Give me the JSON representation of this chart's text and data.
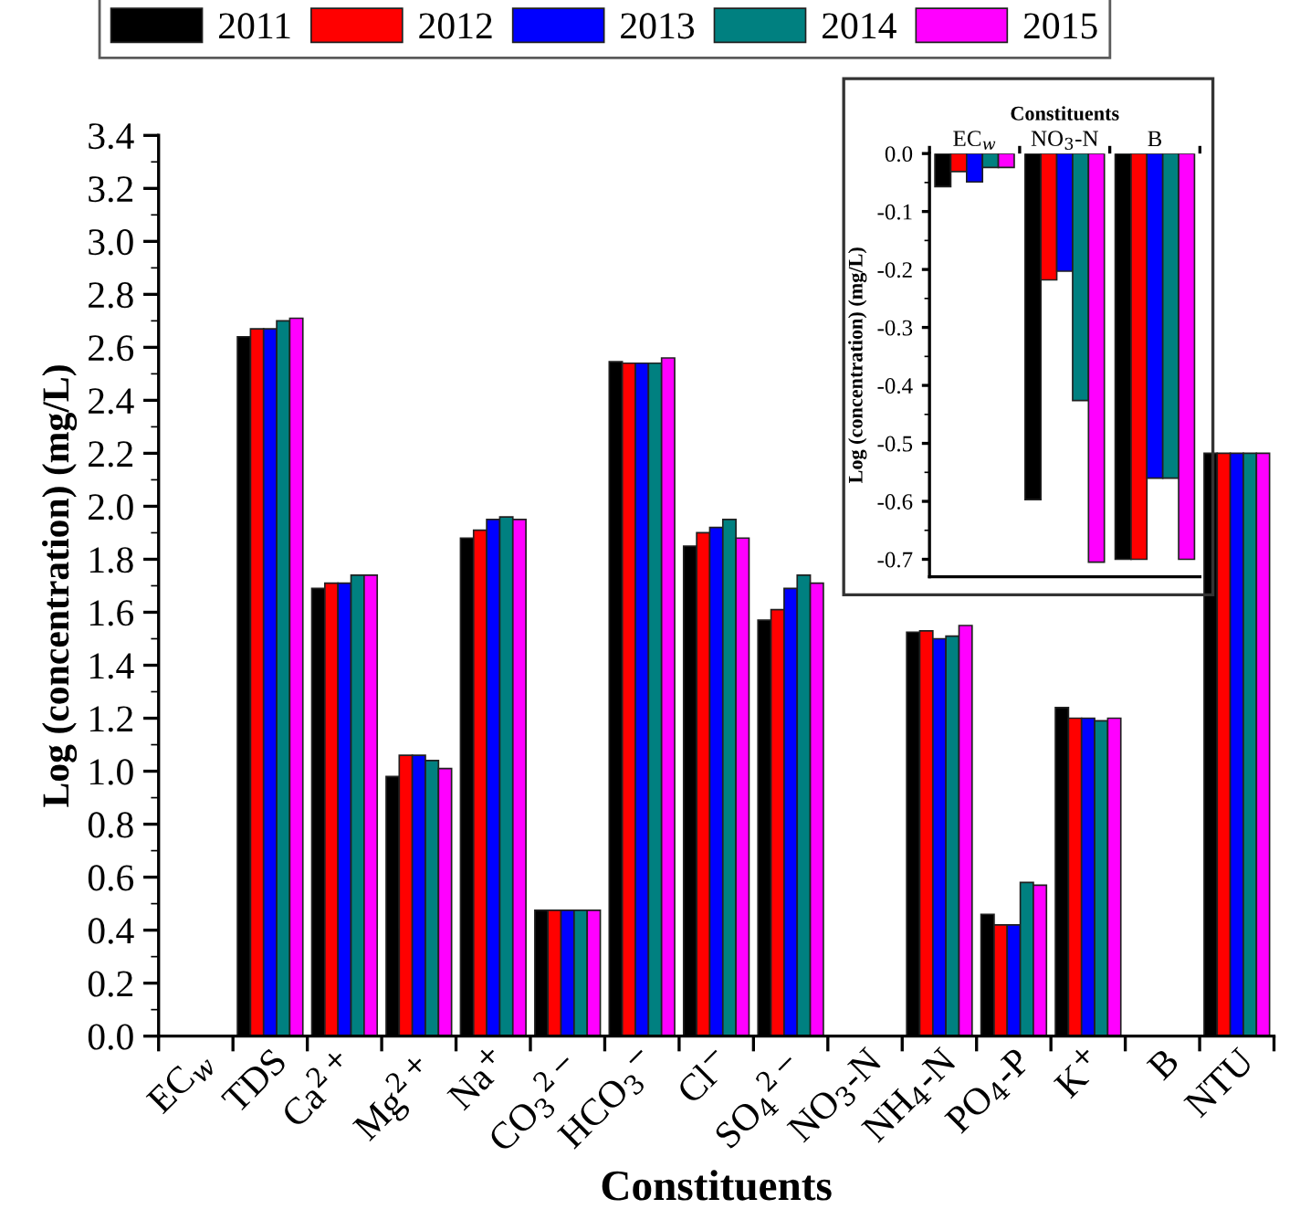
{
  "chart_data": [
    {
      "type": "bar",
      "categories": [
        "EC$_{w}$",
        "TDS",
        "Ca$^{2+}$",
        "Mg$^{2+}$",
        "Na$^{+}$",
        "CO$_{3}$$^{2−}$",
        "HCO$_{3}$$^{−}$",
        "Cl$^{−}$",
        "SO$_{4}$$^{2−}$",
        "NO$_{3}$-N",
        "NH$_{4}$-N",
        "PO$_{4}$-P",
        "K$^{+}$",
        "B",
        "NTU"
      ],
      "series": [
        {
          "name": "2011",
          "color": "#000000",
          "values": [
            null,
            2.64,
            1.69,
            0.98,
            1.88,
            0.475,
            2.546,
            1.85,
            1.57,
            null,
            1.525,
            0.46,
            1.24,
            null,
            2.2
          ]
        },
        {
          "name": "2012",
          "color": "#ff0000",
          "values": [
            null,
            2.67,
            1.71,
            1.06,
            1.91,
            0.475,
            2.54,
            1.9,
            1.61,
            null,
            1.53,
            0.42,
            1.2,
            null,
            2.2
          ]
        },
        {
          "name": "2013",
          "color": "#0000ff",
          "values": [
            null,
            2.67,
            1.71,
            1.06,
            1.95,
            0.475,
            2.54,
            1.92,
            1.69,
            null,
            1.5,
            0.42,
            1.2,
            null,
            2.2
          ]
        },
        {
          "name": "2014",
          "color": "#008080",
          "values": [
            null,
            2.7,
            1.74,
            1.04,
            1.96,
            0.475,
            2.54,
            1.95,
            1.74,
            null,
            1.51,
            0.58,
            1.19,
            null,
            2.2
          ]
        },
        {
          "name": "2015",
          "color": "#ff00ff",
          "values": [
            null,
            2.71,
            1.74,
            1.01,
            1.95,
            0.475,
            2.56,
            1.88,
            1.71,
            null,
            1.55,
            0.57,
            1.2,
            null,
            2.2
          ]
        }
      ],
      "xlabel": "Constituents",
      "ylabel": "Log (concentration) (mg/L)",
      "ylim": [
        0,
        3.4
      ],
      "yticks": [
        {
          "value": 0,
          "label": "0.0"
        },
        0.2,
        0.4,
        0.6,
        0.8,
        {
          "value": 1,
          "label": "1.0"
        },
        1.2,
        1.4,
        1.6,
        1.8,
        {
          "value": 2,
          "label": "2.0"
        },
        2.2,
        2.4,
        2.6,
        2.8,
        {
          "value": 3,
          "label": "3.0"
        },
        3.2,
        3.4
      ],
      "legend": "top",
      "grid": false
    },
    {
      "type": "bar",
      "categories": [
        "EC$_{w}$",
        "NO$_{3}$-N",
        "B"
      ],
      "series": [
        {
          "color": "#000000",
          "values": [
            -0.057,
            -0.597,
            -0.7
          ]
        },
        {
          "color": "#ff0000",
          "values": [
            -0.031,
            -0.218,
            -0.7
          ]
        },
        {
          "color": "#0000ff",
          "values": [
            -0.049,
            -0.203,
            -0.56
          ]
        },
        {
          "color": "#008080",
          "values": [
            -0.024,
            -0.426,
            -0.56
          ]
        },
        {
          "color": "#ff00ff",
          "values": [
            -0.024,
            -0.705,
            -0.7
          ]
        }
      ],
      "x2label": "Constituents",
      "ylabel": "Log (concentration) (mg/L)",
      "ylim": [
        -0.73,
        0
      ],
      "yticks": [
        -0.7,
        -0.6,
        -0.5,
        -0.4,
        -0.3,
        -0.2,
        -0.1,
        {
          "value": 0,
          "label": "0.0"
        }
      ],
      "grid": false
    }
  ]
}
